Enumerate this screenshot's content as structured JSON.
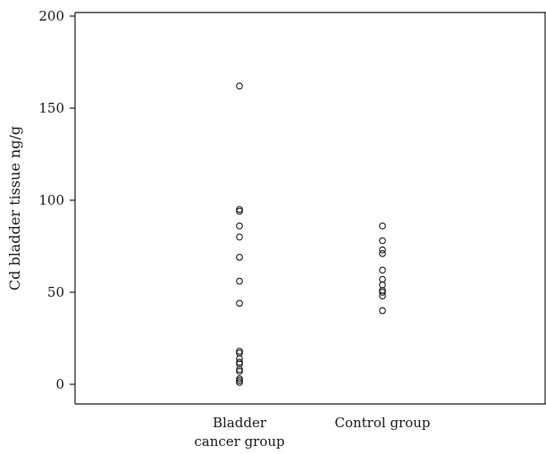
{
  "chart_data": {
    "type": "scatter",
    "title": "",
    "xlabel": "",
    "ylabel": "Cd bladder tissue ng/g",
    "ylim": [
      0,
      200
    ],
    "yticks": [
      0,
      50,
      100,
      150,
      200
    ],
    "grid": false,
    "categories": [
      {
        "label_lines": [
          "Bladder",
          "cancer group"
        ]
      },
      {
        "label_lines": [
          "Control group"
        ]
      }
    ],
    "series": [
      {
        "category": "Bladder cancer group",
        "values": [
          162,
          95,
          94,
          86,
          80,
          69,
          56,
          44,
          18,
          17,
          14,
          12,
          11,
          8,
          7,
          3,
          2,
          1
        ]
      },
      {
        "category": "Control group",
        "values": [
          86,
          78,
          73,
          71,
          62,
          57,
          54,
          51,
          50,
          48,
          40
        ]
      }
    ]
  }
}
